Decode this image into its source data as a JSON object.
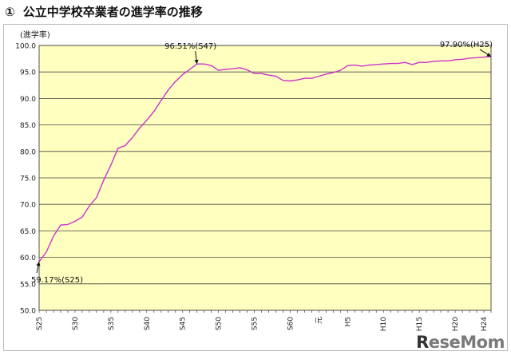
{
  "page": {
    "title_marker": "①",
    "title": "公立中学校卒業者の進学率の推移"
  },
  "chart_data": {
    "type": "line",
    "ylabel": "(進学率)",
    "ylim": [
      50,
      100
    ],
    "yticks": [
      "50.0",
      "55.0",
      "60.0",
      "65.0",
      "70.0",
      "75.0",
      "80.0",
      "85.0",
      "90.0",
      "95.0",
      "100.0"
    ],
    "grid": true,
    "plot_background": "#ffffc0",
    "line_color": "#cc33cc",
    "xtick_labels": [
      "S25",
      "S30",
      "S35",
      "S40",
      "S45",
      "S50",
      "S55",
      "S60",
      "元",
      "H5",
      "H10",
      "H15",
      "H20",
      "H24"
    ],
    "series": [
      {
        "x": [
          "S25",
          "S26",
          "S27",
          "S28",
          "S29",
          "S30",
          "S31",
          "S32",
          "S33",
          "S34",
          "S35",
          "S36",
          "S37",
          "S38",
          "S39",
          "S40",
          "S41",
          "S42",
          "S43",
          "S44",
          "S45",
          "S46",
          "S47",
          "S48",
          "S49",
          "S50",
          "S51",
          "S52",
          "S53",
          "S54",
          "S55",
          "S56",
          "S57",
          "S58",
          "S59",
          "S60",
          "S61",
          "S62",
          "S63",
          "元",
          "H2",
          "H3",
          "H4",
          "H5",
          "H6",
          "H7",
          "H8",
          "H9",
          "H10",
          "H11",
          "H12",
          "H13",
          "H14",
          "H15",
          "H16",
          "H17",
          "H18",
          "H19",
          "H20",
          "H21",
          "H22",
          "H23",
          "H24",
          "H25"
        ],
        "values": [
          59.17,
          61.0,
          64.0,
          66.1,
          66.2,
          66.8,
          67.6,
          69.7,
          71.3,
          74.6,
          77.4,
          80.6,
          81.1,
          82.6,
          84.4,
          85.9,
          87.5,
          89.6,
          91.6,
          93.2,
          94.5,
          95.5,
          96.51,
          96.5,
          96.2,
          95.3,
          95.5,
          95.6,
          95.8,
          95.4,
          94.7,
          94.7,
          94.4,
          94.2,
          93.4,
          93.3,
          93.5,
          93.8,
          93.8,
          94.2,
          94.6,
          94.9,
          95.3,
          96.2,
          96.3,
          96.1,
          96.3,
          96.4,
          96.5,
          96.6,
          96.6,
          96.8,
          96.4,
          96.8,
          96.8,
          97.0,
          97.1,
          97.1,
          97.3,
          97.4,
          97.6,
          97.7,
          97.8,
          97.9
        ]
      }
    ],
    "annotations": [
      {
        "text": "59.17%(S25)",
        "x": "S25",
        "y": 59.17
      },
      {
        "text": "96.51%(S47)",
        "x": "S47",
        "y": 96.51
      },
      {
        "text": "97.90%(H25)",
        "x": "H25",
        "y": 97.9
      }
    ]
  },
  "watermark": {
    "lead": "R",
    "text": "eseMom"
  }
}
